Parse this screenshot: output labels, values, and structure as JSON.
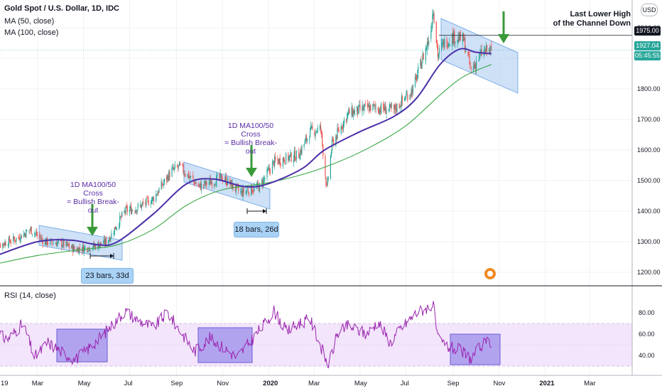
{
  "header": {
    "symbol_title": "Gold Spot / U.S. Dollar, 1D, IDC",
    "ma50_label": "MA (50, close)",
    "ma100_label": "MA (100, close)",
    "currency_badge": "USD",
    "rsi_label": "RSI (14, close)"
  },
  "price_tags": {
    "last_lower_high": "1975.00",
    "last_price": "1927.04",
    "countdown": "05:45:55"
  },
  "annotations": {
    "cross1_text": [
      "1D MA100/50 Cross",
      "= Bullish Break-out"
    ],
    "cross2_text": [
      "1D MA100/50 Cross",
      "= Bullish Break-out"
    ],
    "range1_label": "23 bars, 33d",
    "range2_label": "18 bars, 26d",
    "llh_text": [
      "Last Lower High",
      "of the Channel Down"
    ]
  },
  "colors": {
    "ma50": "#4b2ea8",
    "ma100": "#3aa845",
    "rsi_line": "#9c27b0",
    "rsi_band": "#f3e5fb",
    "channel_fill": "#a6c8f0",
    "arrow": "#3a9a3a",
    "candle_up": "#26a69a",
    "candle_down": "#ef5350",
    "tag_blue": "#2962ff",
    "tag_green": "#26a69a",
    "tag_black": "#131722"
  },
  "chart_data": [
    {
      "type": "candlestick",
      "title": "Gold Spot / U.S. Dollar, 1D, IDC",
      "x_tick_labels": [
        "19",
        "Mar",
        "May",
        "Jul",
        "Sep",
        "Nov",
        "2020",
        "Mar",
        "May",
        "Jul",
        "Sep",
        "Nov",
        "2021",
        "Mar"
      ],
      "y_tick_labels": [
        "1200.00",
        "1300.00",
        "1400.00",
        "1500.00",
        "1600.00",
        "1700.00",
        "1800.00",
        "1900.00",
        "2000.00"
      ],
      "ylim": [
        1165,
        2090
      ],
      "price_path": [
        [
          "2019-01-01",
          1282
        ],
        [
          "2019-02-01",
          1310
        ],
        [
          "2019-02-20",
          1340
        ],
        [
          "2019-03-10",
          1300
        ],
        [
          "2019-04-01",
          1295
        ],
        [
          "2019-04-20",
          1275
        ],
        [
          "2019-05-15",
          1285
        ],
        [
          "2019-06-01",
          1300
        ],
        [
          "2019-06-25",
          1400
        ],
        [
          "2019-07-10",
          1410
        ],
        [
          "2019-08-01",
          1440
        ],
        [
          "2019-08-25",
          1530
        ],
        [
          "2019-09-05",
          1545
        ],
        [
          "2019-10-01",
          1480
        ],
        [
          "2019-11-01",
          1510
        ],
        [
          "2019-11-25",
          1460
        ],
        [
          "2019-12-20",
          1480
        ],
        [
          "2020-01-08",
          1560
        ],
        [
          "2020-02-10",
          1585
        ],
        [
          "2020-02-25",
          1660
        ],
        [
          "2020-03-10",
          1670
        ],
        [
          "2020-03-18",
          1470
        ],
        [
          "2020-03-25",
          1620
        ],
        [
          "2020-04-15",
          1720
        ],
        [
          "2020-05-15",
          1740
        ],
        [
          "2020-06-15",
          1730
        ],
        [
          "2020-07-10",
          1800
        ],
        [
          "2020-08-01",
          1970
        ],
        [
          "2020-08-06",
          2065
        ],
        [
          "2020-08-12",
          1910
        ],
        [
          "2020-08-20",
          1950
        ],
        [
          "2020-09-01",
          1970
        ],
        [
          "2020-09-15",
          1960
        ],
        [
          "2020-09-25",
          1860
        ],
        [
          "2020-10-10",
          1920
        ],
        [
          "2020-10-22",
          1927
        ]
      ],
      "series": [
        {
          "name": "MA (50, close)",
          "values": [
            [
              "2019-01-01",
              1250
            ],
            [
              "2019-03-01",
              1300
            ],
            [
              "2019-04-15",
              1305
            ],
            [
              "2019-05-20",
              1290
            ],
            [
              "2019-06-15",
              1300
            ],
            [
              "2019-08-01",
              1390
            ],
            [
              "2019-09-15",
              1490
            ],
            [
              "2019-10-20",
              1505
            ],
            [
              "2019-12-01",
              1480
            ],
            [
              "2020-01-01",
              1490
            ],
            [
              "2020-02-15",
              1540
            ],
            [
              "2020-03-15",
              1600
            ],
            [
              "2020-05-01",
              1660
            ],
            [
              "2020-06-15",
              1710
            ],
            [
              "2020-07-15",
              1770
            ],
            [
              "2020-08-15",
              1880
            ],
            [
              "2020-09-10",
              1930
            ],
            [
              "2020-10-01",
              1920
            ],
            [
              "2020-10-22",
              1915
            ]
          ]
        },
        {
          "name": "MA (100, close)",
          "values": [
            [
              "2019-01-01",
              1225
            ],
            [
              "2019-03-01",
              1255
            ],
            [
              "2019-05-01",
              1275
            ],
            [
              "2019-06-15",
              1290
            ],
            [
              "2019-08-01",
              1340
            ],
            [
              "2019-09-15",
              1420
            ],
            [
              "2019-11-01",
              1470
            ],
            [
              "2019-12-25",
              1490
            ],
            [
              "2020-02-15",
              1520
            ],
            [
              "2020-04-01",
              1560
            ],
            [
              "2020-05-15",
              1610
            ],
            [
              "2020-07-01",
              1680
            ],
            [
              "2020-08-15",
              1780
            ],
            [
              "2020-09-15",
              1840
            ],
            [
              "2020-10-22",
              1880
            ]
          ]
        }
      ]
    },
    {
      "type": "line",
      "title": "RSI (14, close)",
      "y_tick_labels": [
        "40.00",
        "60.00",
        "80.00"
      ],
      "ylim": [
        28,
        92
      ],
      "band": [
        30,
        70
      ],
      "series": [
        {
          "name": "RSI (14, close)",
          "values": [
            [
              "2019-01-01",
              62
            ],
            [
              "2019-01-20",
              55
            ],
            [
              "2019-02-10",
              70
            ],
            [
              "2019-02-25",
              38
            ],
            [
              "2019-03-15",
              52
            ],
            [
              "2019-04-05",
              42
            ],
            [
              "2019-04-20",
              36
            ],
            [
              "2019-05-10",
              48
            ],
            [
              "2019-05-25",
              58
            ],
            [
              "2019-06-10",
              70
            ],
            [
              "2019-06-25",
              82
            ],
            [
              "2019-07-10",
              74
            ],
            [
              "2019-08-01",
              66
            ],
            [
              "2019-08-20",
              80
            ],
            [
              "2019-09-05",
              64
            ],
            [
              "2019-09-25",
              44
            ],
            [
              "2019-10-15",
              56
            ],
            [
              "2019-11-01",
              48
            ],
            [
              "2019-11-20",
              38
            ],
            [
              "2019-12-10",
              55
            ],
            [
              "2019-12-25",
              68
            ],
            [
              "2020-01-08",
              82
            ],
            [
              "2020-01-25",
              62
            ],
            [
              "2020-02-10",
              70
            ],
            [
              "2020-02-25",
              74
            ],
            [
              "2020-03-12",
              45
            ],
            [
              "2020-03-20",
              30
            ],
            [
              "2020-04-01",
              60
            ],
            [
              "2020-04-15",
              68
            ],
            [
              "2020-05-10",
              60
            ],
            [
              "2020-05-25",
              72
            ],
            [
              "2020-06-10",
              52
            ],
            [
              "2020-06-25",
              66
            ],
            [
              "2020-07-15",
              80
            ],
            [
              "2020-07-30",
              85
            ],
            [
              "2020-08-06",
              88
            ],
            [
              "2020-08-12",
              55
            ],
            [
              "2020-08-25",
              48
            ],
            [
              "2020-09-10",
              45
            ],
            [
              "2020-09-25",
              37
            ],
            [
              "2020-10-10",
              50
            ],
            [
              "2020-10-22",
              53
            ]
          ]
        }
      ]
    }
  ]
}
